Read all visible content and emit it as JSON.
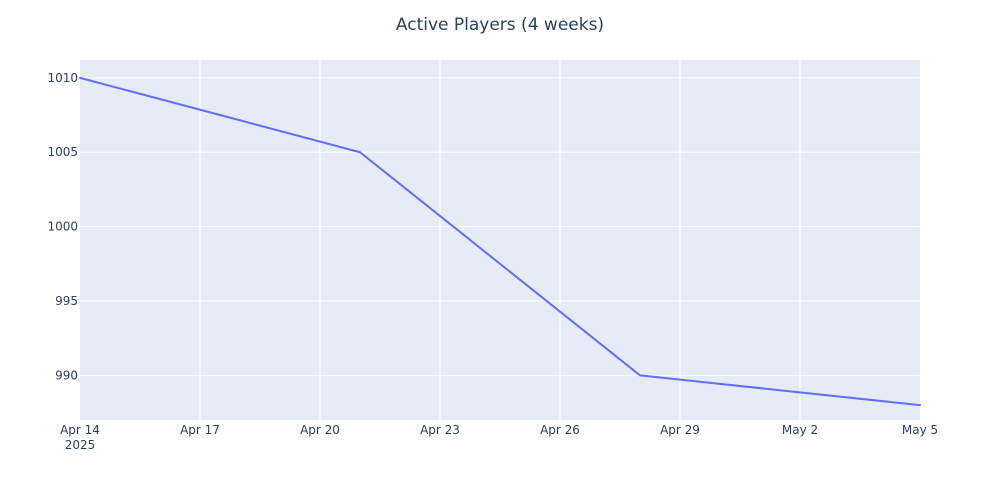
{
  "colors": {
    "plot_background": "#e5ecf6",
    "gridline": "#ffffff",
    "line": "#636efa",
    "text": "#2a3f5f"
  },
  "chart_data": {
    "type": "line",
    "title": "Active Players (4 weeks)",
    "xlabel": "",
    "ylabel": "",
    "x_axis_type": "date",
    "xlim": [
      "2025-04-14",
      "2025-05-05"
    ],
    "ylim": [
      987,
      1011.2
    ],
    "x_ticks": [
      {
        "date": "2025-04-14",
        "label": "Apr 14",
        "sublabel": "2025"
      },
      {
        "date": "2025-04-17",
        "label": "Apr 17"
      },
      {
        "date": "2025-04-20",
        "label": "Apr 20"
      },
      {
        "date": "2025-04-23",
        "label": "Apr 23"
      },
      {
        "date": "2025-04-26",
        "label": "Apr 26"
      },
      {
        "date": "2025-04-29",
        "label": "Apr 29"
      },
      {
        "date": "2025-05-02",
        "label": "May 2"
      },
      {
        "date": "2025-05-05",
        "label": "May 5"
      }
    ],
    "y_ticks": [
      990,
      995,
      1000,
      1005,
      1010
    ],
    "grid": true,
    "legend": false,
    "series": [
      {
        "x": [
          "2025-04-14",
          "2025-04-21",
          "2025-04-28",
          "2025-05-05"
        ],
        "y": [
          1010,
          1005,
          990,
          988
        ]
      }
    ]
  }
}
